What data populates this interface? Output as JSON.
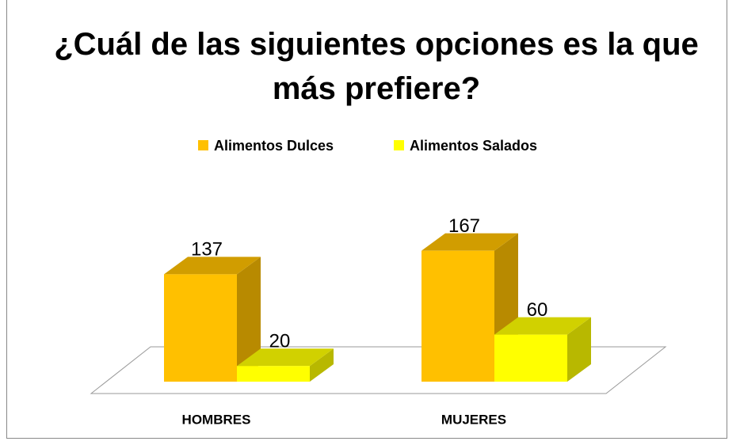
{
  "chart_data": {
    "type": "bar3d",
    "title": "¿Cuál de las siguientes opciones es la que más prefiere?",
    "categories": [
      "HOMBRES",
      "MUJERES"
    ],
    "series": [
      {
        "name": "Alimentos Dulces",
        "color": "#FFC000",
        "values": [
          137,
          167
        ]
      },
      {
        "name": "Alimentos Salados",
        "color": "#FFFF00",
        "values": [
          20,
          60
        ]
      }
    ],
    "legend": "top"
  }
}
